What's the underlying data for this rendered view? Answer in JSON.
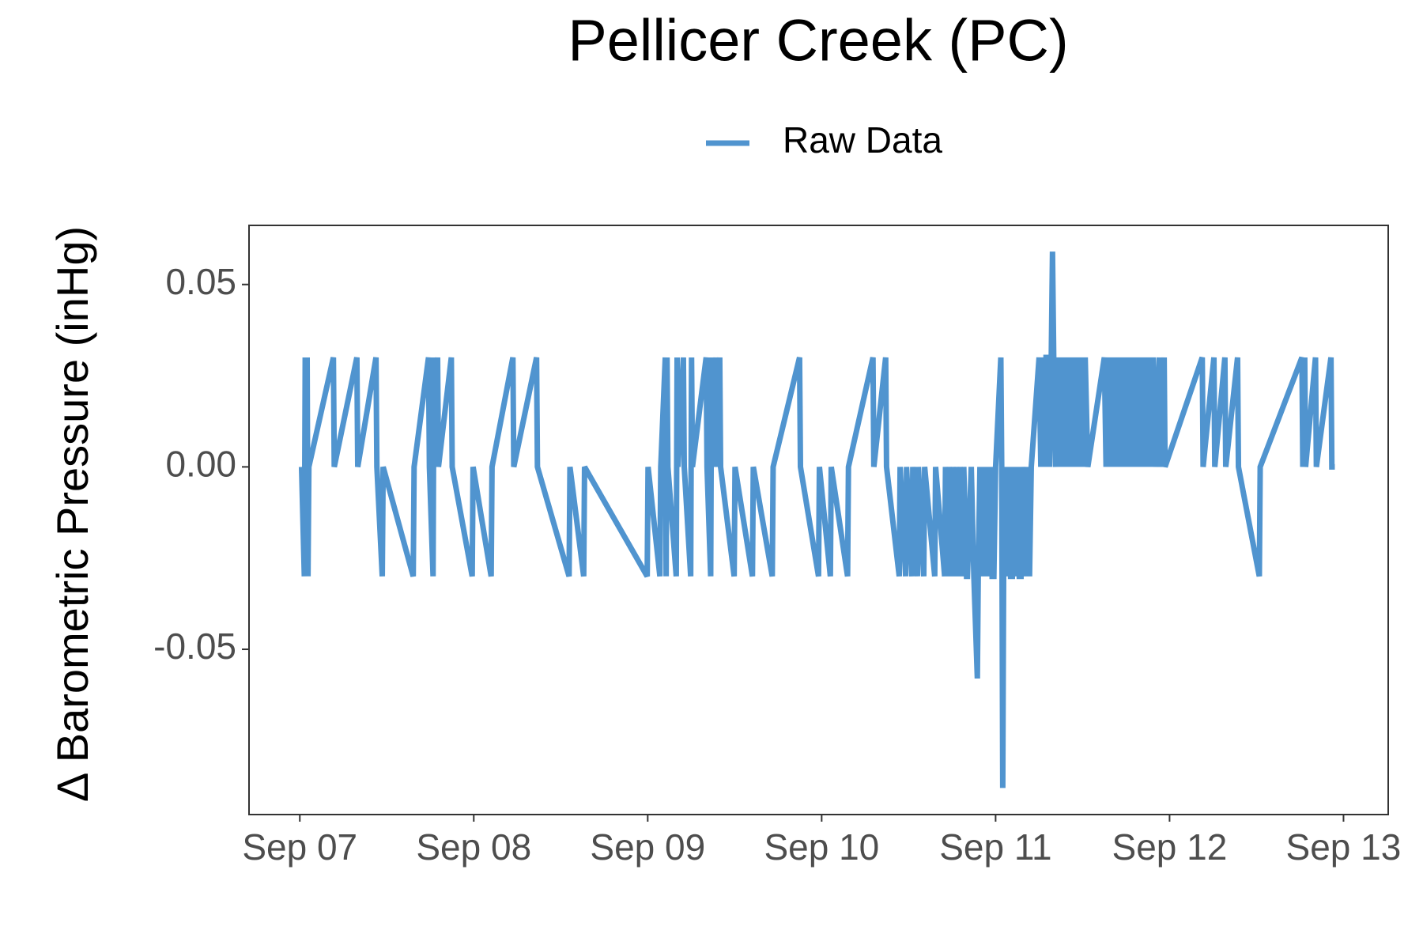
{
  "chart_data": {
    "type": "line",
    "title": "Pellicer Creek (PC)",
    "y_label": "Δ Barometric Pressure (inHg)",
    "x": [
      0.01,
      0.026,
      0.031,
      0.036,
      0.042,
      0.047,
      0.052,
      0.193,
      0.198,
      0.328,
      0.333,
      0.438,
      0.443,
      0.474,
      0.479,
      0.652,
      0.657,
      0.74,
      0.745,
      0.766,
      0.771,
      0.776,
      0.792,
      0.797,
      0.871,
      0.876,
      0.991,
      0.996,
      1.1,
      1.105,
      1.225,
      1.23,
      1.361,
      1.366,
      1.548,
      1.553,
      1.632,
      1.637,
      1.997,
      2.002,
      2.07,
      2.075,
      2.101,
      2.106,
      2.111,
      2.116,
      2.164,
      2.169,
      2.174,
      2.205,
      2.21,
      2.247,
      2.252,
      2.257,
      2.336,
      2.341,
      2.362,
      2.367,
      2.372,
      2.393,
      2.398,
      2.414,
      2.419,
      2.497,
      2.502,
      2.602,
      2.607,
      2.716,
      2.721,
      2.873,
      2.878,
      2.982,
      2.987,
      3.05,
      3.055,
      3.149,
      3.154,
      3.295,
      3.3,
      3.368,
      3.373,
      3.446,
      3.451,
      3.483,
      3.488,
      3.519,
      3.524,
      3.551,
      3.556,
      3.587,
      3.592,
      3.65,
      3.655,
      3.707,
      3.712,
      3.728,
      3.733,
      3.749,
      3.754,
      3.77,
      3.775,
      3.791,
      3.796,
      3.812,
      3.817,
      3.833,
      3.838,
      3.86,
      3.875,
      3.895,
      3.9,
      3.91,
      3.92,
      3.93,
      3.94,
      3.95,
      3.96,
      3.97,
      3.98,
      3.99,
      4.0,
      4.03,
      4.035,
      4.041,
      4.046,
      4.056,
      4.066,
      4.076,
      4.086,
      4.096,
      4.106,
      4.116,
      4.126,
      4.136,
      4.146,
      4.156,
      4.17,
      4.18,
      4.195,
      4.205,
      4.25,
      4.26,
      4.27,
      4.28,
      4.29,
      4.3,
      4.31,
      4.32,
      4.327,
      4.334,
      4.345,
      4.355,
      4.365,
      4.375,
      4.385,
      4.395,
      4.405,
      4.415,
      4.425,
      4.435,
      4.445,
      4.455,
      4.465,
      4.475,
      4.485,
      4.495,
      4.505,
      4.515,
      4.53,
      4.625,
      4.635,
      4.645,
      4.655,
      4.665,
      4.675,
      4.685,
      4.695,
      4.705,
      4.715,
      4.725,
      4.735,
      4.745,
      4.755,
      4.765,
      4.775,
      4.785,
      4.795,
      4.805,
      4.815,
      4.825,
      4.835,
      4.845,
      4.855,
      4.865,
      4.875,
      4.885,
      4.895,
      4.905,
      4.915,
      4.94,
      4.945,
      4.969,
      4.974,
      5.188,
      5.193,
      5.255,
      5.26,
      5.318,
      5.323,
      5.391,
      5.396,
      5.516,
      5.521,
      5.761,
      5.766,
      5.777,
      5.782,
      5.839,
      5.844,
      5.928,
      5.933,
      5.95
    ],
    "series": [
      {
        "name": "Raw Data",
        "color": "#5094cf",
        "values": [
          0,
          -0.03,
          0.03,
          -0.03,
          0.03,
          -0.03,
          0,
          0.03,
          0,
          0.03,
          0,
          0.03,
          0,
          -0.03,
          0,
          -0.03,
          0,
          0.03,
          0,
          -0.03,
          0.03,
          0,
          0.03,
          0,
          0.03,
          0,
          -0.03,
          0,
          -0.03,
          0,
          0.03,
          0,
          0.03,
          0,
          -0.03,
          0,
          -0.03,
          0,
          -0.03,
          0,
          -0.03,
          0,
          0.03,
          -0.03,
          0.03,
          0,
          -0.03,
          0.03,
          0,
          0.03,
          0,
          -0.03,
          0.03,
          0,
          0.03,
          0,
          -0.03,
          0.03,
          0,
          0.03,
          0,
          0.03,
          0,
          -0.03,
          0,
          -0.03,
          0,
          -0.03,
          0,
          0.03,
          0,
          -0.03,
          0,
          -0.03,
          0,
          -0.03,
          0,
          0.03,
          0,
          0.03,
          0,
          -0.03,
          0,
          -0.03,
          0,
          -0.03,
          0,
          -0.03,
          0,
          -0.03,
          0,
          -0.03,
          0,
          -0.03,
          0,
          -0.03,
          0,
          -0.03,
          0,
          -0.03,
          0,
          -0.03,
          0,
          -0.03,
          0,
          -0.03,
          -0.03,
          0,
          -0.03,
          -0.058,
          -0.03,
          0,
          -0.03,
          0,
          -0.03,
          0,
          -0.03,
          0,
          -0.03,
          -0.03,
          0,
          0.03,
          0,
          -0.088,
          -0.03,
          0,
          -0.03,
          0,
          -0.03,
          -0.03,
          0,
          -0.03,
          0,
          -0.03,
          -0.03,
          0,
          -0.03,
          0,
          -0.03,
          0,
          0.03,
          0,
          0.03,
          0,
          0.03,
          0.03,
          0,
          0.03,
          0.059,
          0.03,
          0,
          0.03,
          0,
          0.03,
          0,
          0.03,
          0,
          0.03,
          0,
          0.03,
          0,
          0.03,
          0,
          0.03,
          0,
          0.03,
          0,
          0.03,
          0,
          0.03,
          0,
          0.03,
          0,
          0.03,
          0,
          0.03,
          0,
          0.03,
          0,
          0.03,
          0,
          0.03,
          0,
          0.03,
          0,
          0.03,
          0,
          0.03,
          0,
          0.03,
          0,
          0.03,
          0,
          0.03,
          0,
          0.03,
          0,
          0.03,
          0,
          0.03,
          0,
          0.03,
          0,
          0.03,
          0,
          0.03,
          0,
          0.03,
          0,
          0.03,
          0,
          -0.03,
          0,
          0.03,
          0,
          0.03,
          0,
          0.03,
          0,
          0.03,
          0,
          0
        ]
      }
    ],
    "xlim": [
      -0.292,
      6.257
    ],
    "ylim": [
      -0.0953,
      0.0662
    ],
    "xticks": [
      {
        "value": 0,
        "label": "Sep 07"
      },
      {
        "value": 1,
        "label": "Sep 08"
      },
      {
        "value": 2,
        "label": "Sep 09"
      },
      {
        "value": 3,
        "label": "Sep 10"
      },
      {
        "value": 4,
        "label": "Sep 11"
      },
      {
        "value": 5,
        "label": "Sep 12"
      },
      {
        "value": 6,
        "label": "Sep 13"
      }
    ],
    "yticks": [
      -0.05,
      {
        "value": 0,
        "label": "0.00"
      },
      0.05
    ],
    "grid": false,
    "legend": "top"
  }
}
